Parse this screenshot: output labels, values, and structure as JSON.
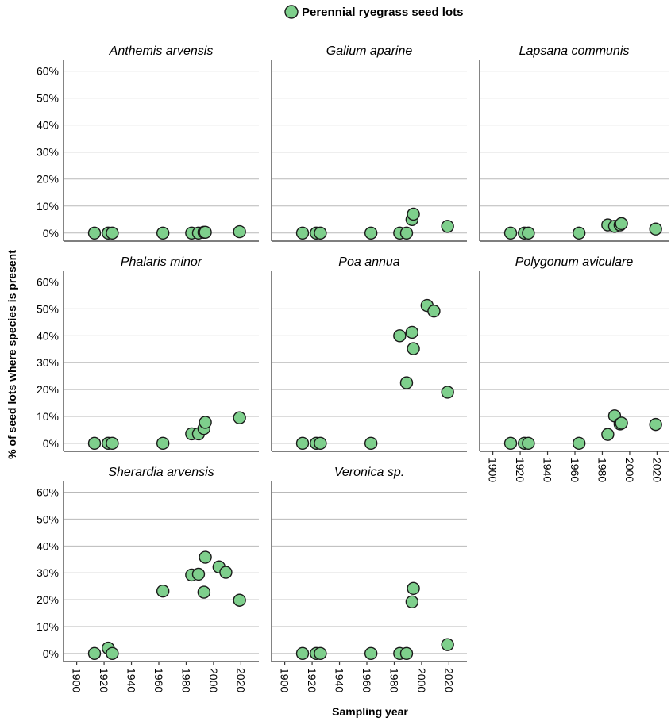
{
  "legend": {
    "label": "Perennial ryegrass seed lots",
    "color": "#7ecf8c"
  },
  "axes": {
    "xlabel": "Sampling year",
    "ylabel": "% of seed lots where species is present",
    "xlim": [
      1895,
      2025
    ],
    "ylim": [
      -3,
      64
    ],
    "xticks": [
      1900,
      1920,
      1940,
      1960,
      1980,
      2000,
      2020
    ],
    "yticks": [
      0,
      10,
      20,
      30,
      40,
      50,
      60
    ],
    "ytick_labels": [
      "0%",
      "10%",
      "20%",
      "30%",
      "40%",
      "50%",
      "60%"
    ],
    "grid": "horizontal"
  },
  "chart_data": [
    {
      "type": "scatter",
      "title": "Anthemis arvensis",
      "x": [
        1913,
        1923,
        1926,
        1963,
        1984,
        1989,
        1993,
        1994,
        2019
      ],
      "y": [
        0,
        0,
        0,
        0,
        0,
        0,
        0.3,
        0.3,
        0.5
      ]
    },
    {
      "type": "scatter",
      "title": "Galium aparine",
      "x": [
        1913,
        1923,
        1926,
        1963,
        1984,
        1989,
        1993,
        1994,
        2019
      ],
      "y": [
        0,
        0,
        0,
        0,
        0,
        0,
        5,
        7,
        2.5
      ]
    },
    {
      "type": "scatter",
      "title": "Lapsana communis",
      "x": [
        1913,
        1923,
        1926,
        1963,
        1984,
        1989,
        1993,
        1994,
        2019
      ],
      "y": [
        0,
        0,
        0,
        0,
        3,
        2.5,
        3,
        3.5,
        1.5
      ]
    },
    {
      "type": "scatter",
      "title": "Phalaris minor",
      "x": [
        1913,
        1923,
        1926,
        1963,
        1984,
        1989,
        1993,
        1994,
        2019
      ],
      "y": [
        0,
        0,
        0,
        0,
        3.5,
        3.5,
        5.5,
        7.8,
        9.5
      ]
    },
    {
      "type": "scatter",
      "title": "Poa annua",
      "x": [
        1913,
        1923,
        1926,
        1963,
        1984,
        1989,
        1993,
        1994,
        2004,
        2009,
        2019
      ],
      "y": [
        0,
        0,
        0,
        0,
        40,
        22.5,
        41.3,
        35.2,
        51.3,
        49.2,
        19
      ]
    },
    {
      "type": "scatter",
      "title": "Polygonum aviculare",
      "x": [
        1913,
        1923,
        1926,
        1963,
        1984,
        1989,
        1993,
        1994,
        2019
      ],
      "y": [
        0,
        0,
        0,
        0,
        3.3,
        10.2,
        7.2,
        7.5,
        7
      ]
    },
    {
      "type": "scatter",
      "title": "Sherardia arvensis",
      "x": [
        1913,
        1923,
        1926,
        1963,
        1984,
        1989,
        1993,
        1994,
        2004,
        2009,
        2019
      ],
      "y": [
        0,
        2,
        0,
        23.2,
        29.2,
        29.5,
        22.8,
        35.8,
        32.2,
        30.2,
        19.8
      ]
    },
    {
      "type": "scatter",
      "title": "Veronica sp.",
      "x": [
        1913,
        1923,
        1926,
        1963,
        1984,
        1989,
        1993,
        1994,
        2019
      ],
      "y": [
        0,
        0,
        0,
        0,
        0,
        0,
        19.2,
        24.2,
        3.3
      ]
    }
  ]
}
